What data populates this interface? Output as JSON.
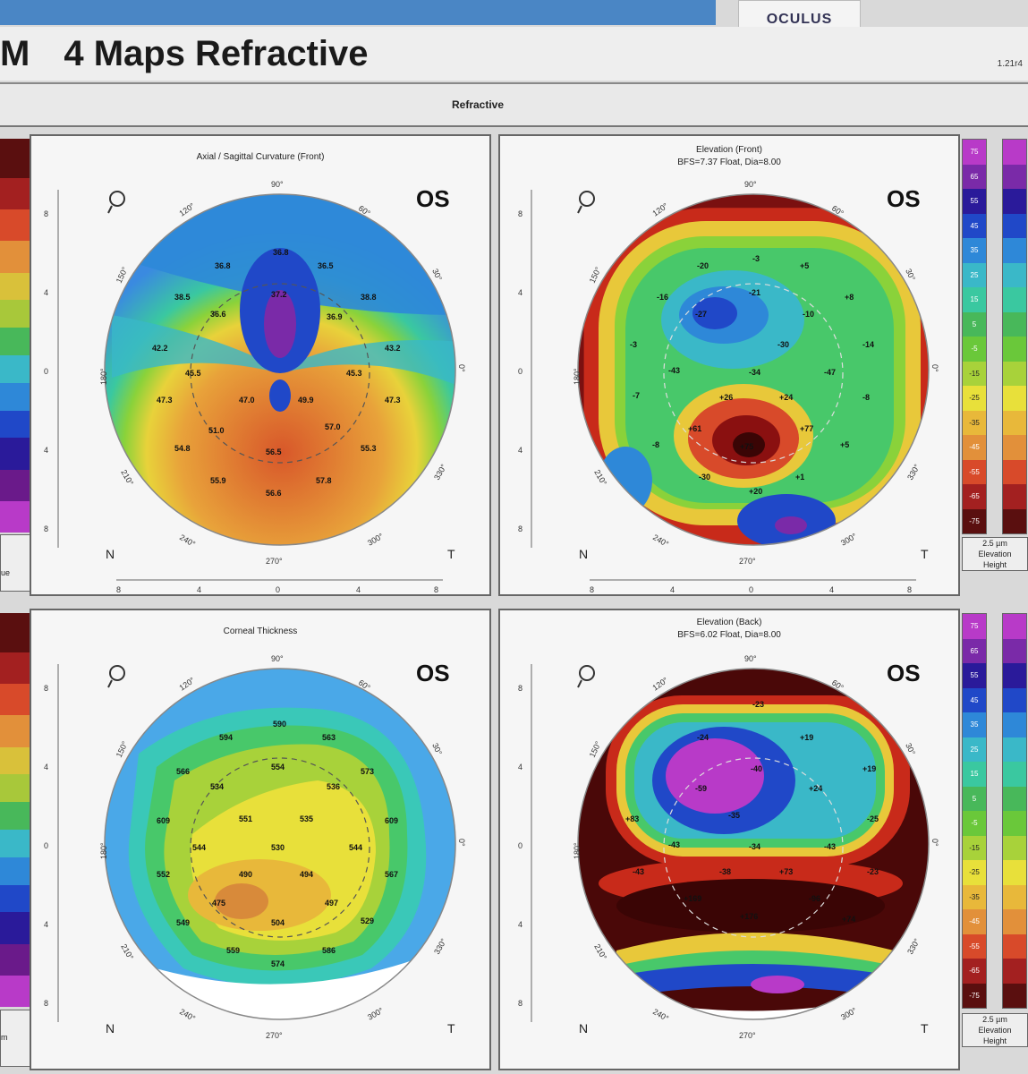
{
  "app": {
    "brand": "OCULUS",
    "title_prefix": "M",
    "title": "4 Maps Refractive",
    "version": "1.21r4",
    "tab": "Refractive"
  },
  "eye": "OS",
  "panels": [
    {
      "id": "axial",
      "title": "Axial / Sagittal Curvature (Front)",
      "subtitle": ""
    },
    {
      "id": "elev_front",
      "title": "Elevation (Front)",
      "subtitle": "BFS=7.37 Float, Dia=8.00"
    },
    {
      "id": "thickness",
      "title": "Corneal Thickness",
      "subtitle": ""
    },
    {
      "id": "elev_back",
      "title": "Elevation (Back)",
      "subtitle": "BFS=6.02 Float, Dia=8.00"
    }
  ],
  "axis": {
    "top": "90°",
    "bottom": "270°",
    "a120": "120°",
    "a60": "60°",
    "a150": "150°",
    "a30": "30°",
    "a180": "180°",
    "a0": "0°",
    "a210": "210°",
    "a330": "330°",
    "a240": "240°",
    "a300": "300°",
    "nasal": "N",
    "temporal": "T",
    "ticks": [
      "8",
      "4",
      "0",
      "4",
      "8"
    ]
  },
  "elevation_scale": [
    "75",
    "65",
    "55",
    "45",
    "35",
    "25",
    "15",
    "5",
    "-5",
    "-15",
    "-25",
    "-35",
    "-45",
    "-55",
    "-65",
    "-75"
  ],
  "elevation_scale_box": [
    "2.5 µm",
    "Elevation",
    "Height"
  ],
  "left_box_top": "ue",
  "left_box_bottom": "m",
  "axial_values": [
    "36.8",
    "36.8",
    "36.5",
    "38.5",
    "36.6",
    "37.2",
    "38.8",
    "36.9",
    "42.2",
    "43.2",
    "45.5",
    "45.3",
    "47.3",
    "47.3",
    "49.9",
    "47.0",
    "51.0",
    "57.0",
    "54.8",
    "56.5",
    "55.3",
    "55.9",
    "57.8",
    "56.6"
  ],
  "elev_front_values": [
    "-20",
    "-3",
    "+5",
    "-16",
    "-21",
    "+8",
    "-27",
    "-10",
    "-30",
    "-14",
    "-3",
    "-43",
    "-34",
    "-47",
    "-7",
    "+26",
    "+24",
    "-8",
    "+61",
    "+77",
    "-8",
    "+75",
    "+5",
    "-30",
    "+20",
    "+1"
  ],
  "thickness_values": [
    "594",
    "590",
    "563",
    "566",
    "554",
    "573",
    "534",
    "536",
    "609",
    "551",
    "535",
    "609",
    "544",
    "530",
    "544",
    "552",
    "490",
    "494",
    "567",
    "475",
    "497",
    "549",
    "504",
    "529",
    "559",
    "586",
    "574"
  ],
  "elev_back_values": [
    "-23",
    "+19",
    "-24",
    "+19",
    "-40",
    "+24",
    "-59",
    "-35",
    "-25",
    "-43",
    "-34",
    "-43",
    "+83",
    "-43",
    "-38",
    "+73",
    "-23",
    "+169",
    "-96",
    "+176",
    "+74"
  ]
}
